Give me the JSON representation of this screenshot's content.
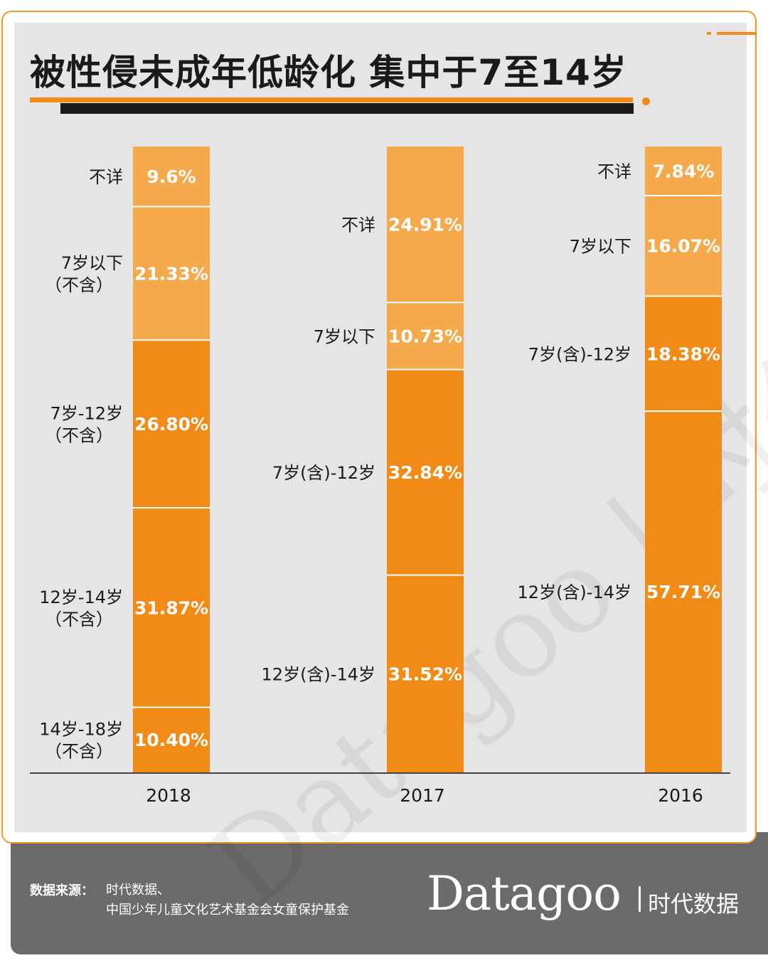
{
  "title": "被性侵未成年低龄化 集中于7至14岁",
  "colors": {
    "accent": "#f28a16",
    "light_orange": "#f5a94a",
    "dark": "#1a1a1a",
    "footer_bg": "#6b6b6b",
    "panel_bg": "#e5e5e5"
  },
  "chart_data": {
    "type": "bar",
    "stacked": true,
    "normalized_percent": true,
    "categories": [
      "2018",
      "2017",
      "2016"
    ],
    "series": [
      {
        "year": "2018",
        "segments": [
          {
            "name": [
              "14岁-18岁",
              "（不含）"
            ],
            "value": 10.4,
            "label": "10.40%",
            "color": "#f28a16"
          },
          {
            "name": [
              "12岁-14岁",
              "（不含）"
            ],
            "value": 31.87,
            "label": "31.87%",
            "color": "#f28a16"
          },
          {
            "name": [
              "7岁-12岁",
              "（不含）"
            ],
            "value": 26.8,
            "label": "26.80%",
            "color": "#f28a16"
          },
          {
            "name": [
              "7岁以下",
              "（不含）"
            ],
            "value": 21.33,
            "label": "21.33%",
            "color": "#f5a94a"
          },
          {
            "name": [
              "不详"
            ],
            "value": 9.6,
            "label": "9.6%",
            "color": "#f5a94a"
          }
        ]
      },
      {
        "year": "2017",
        "segments": [
          {
            "name": [
              "12岁(含)-14岁"
            ],
            "value": 31.52,
            "label": "31.52%",
            "color": "#f28a16"
          },
          {
            "name": [
              "7岁(含)-12岁"
            ],
            "value": 32.84,
            "label": "32.84%",
            "color": "#f28a16"
          },
          {
            "name": [
              "7岁以下"
            ],
            "value": 10.73,
            "label": "10.73%",
            "color": "#f5a94a"
          },
          {
            "name": [
              "不详"
            ],
            "value": 24.91,
            "label": "24.91%",
            "color": "#f5a94a"
          }
        ]
      },
      {
        "year": "2016",
        "segments": [
          {
            "name": [
              "12岁(含)-14岁"
            ],
            "value": 57.71,
            "label": "57.71%",
            "color": "#f28a16"
          },
          {
            "name": [
              "7岁(含)-12岁"
            ],
            "value": 18.38,
            "label": "18.38%",
            "color": "#f28a16"
          },
          {
            "name": [
              "7岁以下"
            ],
            "value": 16.07,
            "label": "16.07%",
            "color": "#f5a94a"
          },
          {
            "name": [
              "不详"
            ],
            "value": 7.84,
            "label": "7.84%",
            "color": "#f5a94a"
          }
        ]
      }
    ],
    "grid": false,
    "legend": "none"
  },
  "footer": {
    "source_label": "数据来源：",
    "source_lines": [
      "时代数据、",
      "中国少年儿童文化艺术基金会女童保护基金"
    ],
    "logo_text": "Datagoo",
    "logo_cn": "时代数据"
  },
  "watermark": "Datagoo | 时代数据"
}
